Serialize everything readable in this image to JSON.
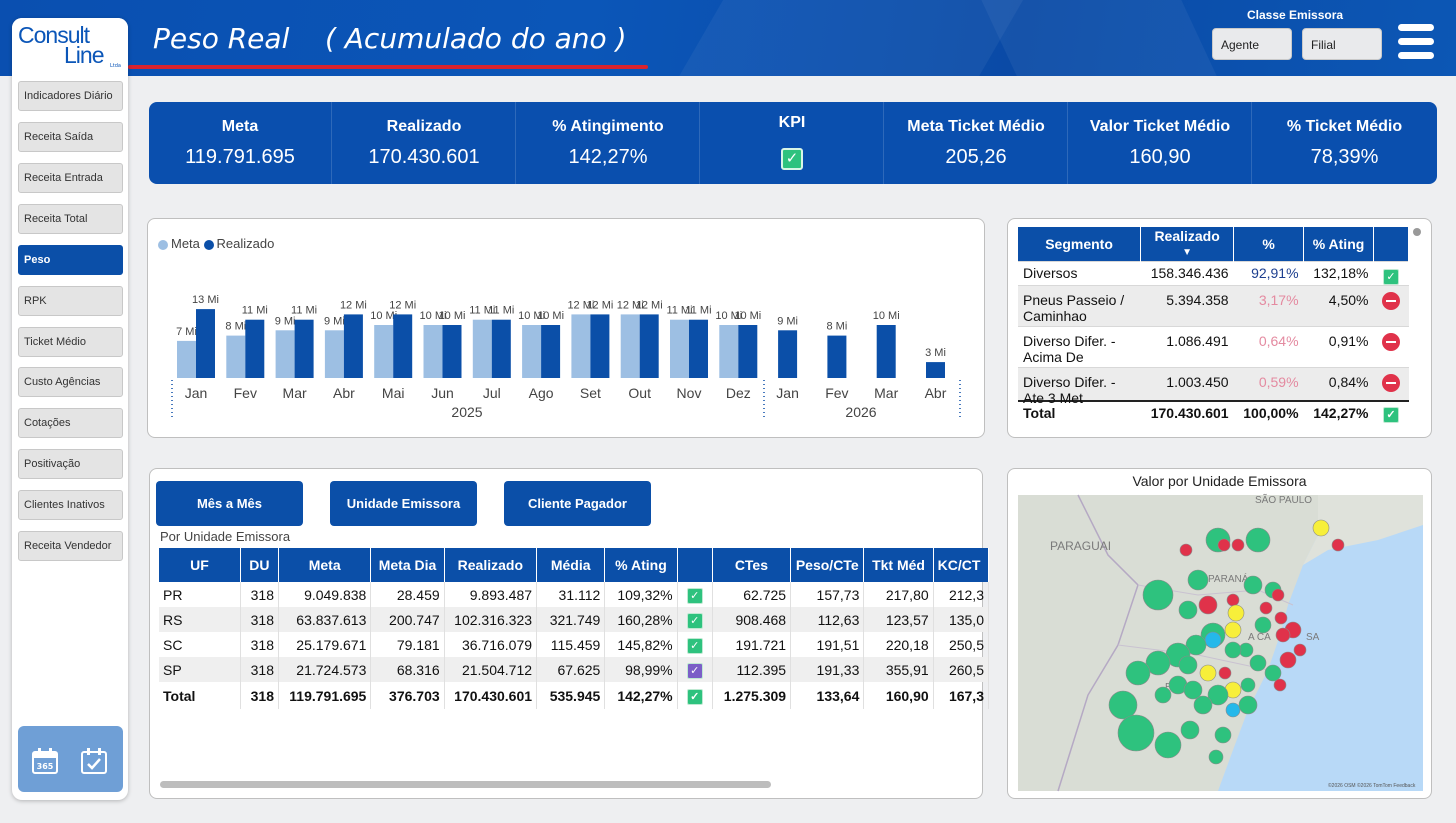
{
  "header": {
    "title": "Peso Real    ( Acumulado do ano )",
    "classe_label": "Classe Emissora",
    "slicer_agente": "Agente",
    "slicer_filial": "Filial"
  },
  "logo": {
    "line1": "Consult",
    "line2": "Line",
    "suffix": "Ltda"
  },
  "sidebar": {
    "items": [
      "Indicadores Diário",
      "Receita Saída",
      "Receita Entrada",
      "Receita Total",
      "Peso",
      "RPK",
      "Ticket Médio",
      "Custo Agências",
      "Cotações",
      "Positivação",
      "Clientes Inativos",
      "Receita Vendedor"
    ],
    "active": "Peso"
  },
  "kpis": [
    {
      "label": "Meta",
      "value": "119.791.695"
    },
    {
      "label": "Realizado",
      "value": "170.430.601"
    },
    {
      "label": "% Atingimento",
      "value": "142,27%"
    },
    {
      "label": "KPI",
      "value": "✓"
    },
    {
      "label": "Meta Ticket Médio",
      "value": "205,26"
    },
    {
      "label": "Valor Ticket Médio",
      "value": "160,90"
    },
    {
      "label": "% Ticket Médio",
      "value": "78,39%"
    }
  ],
  "colors": {
    "brand": "#0b4fa8",
    "meta": "#9dbfe3",
    "realizado": "#0b4fa8",
    "ok": "#2ec27e",
    "bad": "#e0324a",
    "neutral": "#f7ef3a",
    "cyan": "#25b8ea"
  },
  "chart_data": {
    "type": "bar",
    "legend": [
      "Meta",
      "Realizado"
    ],
    "categories": [
      "Jan",
      "Fev",
      "Mar",
      "Abr",
      "Mai",
      "Jun",
      "Jul",
      "Ago",
      "Set",
      "Out",
      "Nov",
      "Dez",
      "Jan",
      "Fev",
      "Mar",
      "Abr"
    ],
    "years": [
      "2025",
      "2026"
    ],
    "series": [
      {
        "name": "Meta",
        "values": [
          7,
          8,
          9,
          9,
          10,
          10,
          11,
          10,
          12,
          12,
          11,
          10,
          null,
          null,
          null,
          null
        ]
      },
      {
        "name": "Realizado",
        "values": [
          13,
          11,
          11,
          12,
          12,
          10,
          11,
          10,
          12,
          12,
          11,
          10,
          9,
          8,
          10,
          3
        ]
      }
    ],
    "labels": [
      "7 Mi",
      "13 Mi",
      "8 Mi",
      "11 Mi",
      "9 Mi",
      "11 Mi",
      "9 Mi",
      "12 Mi",
      "10 Mi",
      "12 Mi",
      "10 Mi",
      "11 Mi",
      "10 Mi",
      "12 Mi",
      "12 Mi",
      "11 Mi",
      "10 Mi",
      "9 Mi",
      "8 Mi",
      "10 Mi",
      "3 Mi"
    ],
    "unit": "Mi"
  },
  "segment_table": {
    "headers": [
      "Segmento",
      "Realizado",
      "%",
      "% Atingimento"
    ],
    "header_labels": [
      "Segmento",
      "Realizado",
      "%",
      "% Ating"
    ],
    "rows": [
      {
        "seg": "Diversos",
        "real": "158.346.436",
        "pct": "92,91%",
        "ating": "132,18%",
        "status": "ok"
      },
      {
        "seg": "Pneus Passeio / Caminhao",
        "real": "5.394.358",
        "pct": "3,17%",
        "ating": "4,50%",
        "status": "bad"
      },
      {
        "seg": "Diverso Difer. - Acima De",
        "real": "1.086.491",
        "pct": "0,64%",
        "ating": "0,91%",
        "status": "bad"
      },
      {
        "seg": "Diverso Difer. - Ate 3 Met",
        "real": "1.003.450",
        "pct": "0,59%",
        "ating": "0,84%",
        "status": "bad"
      }
    ],
    "total": {
      "seg": "Total",
      "real": "170.430.601",
      "pct": "100,00%",
      "ating": "142,27%",
      "status": "ok"
    }
  },
  "buttons": [
    "Mês a Mês",
    "Unidade Emissora",
    "Cliente Pagador"
  ],
  "uf_table": {
    "caption": "Por Unidade Emissora",
    "headers": [
      "UF",
      "DU",
      "Meta",
      "Meta Dia",
      "Realizado",
      "Média",
      "% Ating",
      "",
      "CTes",
      "Peso/CTe",
      "Tkt Méd",
      "KC/CT"
    ],
    "rows": [
      {
        "uf": "PR",
        "du": "318",
        "meta": "9.049.838",
        "dia": "28.459",
        "real": "9.893.487",
        "media": "31.112",
        "ating": "109,32%",
        "st": "ok",
        "ctes": "62.725",
        "peso": "157,73",
        "tkt": "217,80",
        "kc": "212,3"
      },
      {
        "uf": "RS",
        "du": "318",
        "meta": "63.837.613",
        "dia": "200.747",
        "real": "102.316.323",
        "media": "321.749",
        "ating": "160,28%",
        "st": "ok",
        "ctes": "908.468",
        "peso": "112,63",
        "tkt": "123,57",
        "kc": "135,0"
      },
      {
        "uf": "SC",
        "du": "318",
        "meta": "25.179.671",
        "dia": "79.181",
        "real": "36.716.079",
        "media": "115.459",
        "ating": "145,82%",
        "st": "ok",
        "ctes": "191.721",
        "peso": "191,51",
        "tkt": "220,18",
        "kc": "250,5"
      },
      {
        "uf": "SP",
        "du": "318",
        "meta": "21.724.573",
        "dia": "68.316",
        "real": "21.504.712",
        "media": "67.625",
        "ating": "98,99%",
        "st": "warn",
        "ctes": "112.395",
        "peso": "191,33",
        "tkt": "355,91",
        "kc": "260,5"
      }
    ],
    "total": {
      "uf": "Total",
      "du": "318",
      "meta": "119.791.695",
      "dia": "376.703",
      "real": "170.430.601",
      "media": "535.945",
      "ating": "142,27%",
      "st": "ok",
      "ctes": "1.275.309",
      "peso": "133,64",
      "tkt": "160,90",
      "kc": "167,3"
    }
  },
  "map": {
    "title": "Valor por Unidade Emissora",
    "labels": [
      "SÃO PAULO",
      "PARAGUAI",
      "PARANÁ",
      "SA",
      "RIO",
      "A CA"
    ],
    "credit": "©2026 OSM ©2026 TomTom Feedback"
  }
}
